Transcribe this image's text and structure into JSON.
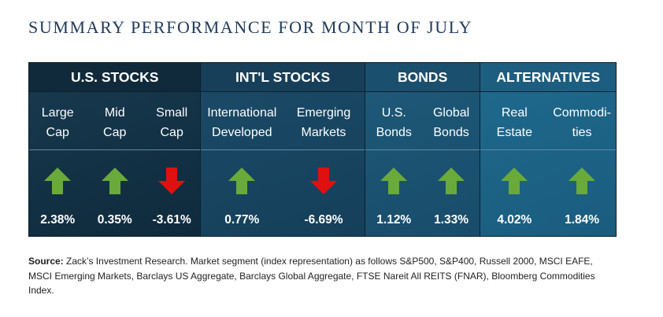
{
  "title": "SUMMARY PERFORMANCE FOR MONTH OF JULY",
  "groups": [
    {
      "header": "U.S. STOCKS",
      "columns": [
        {
          "line1": "Large",
          "line2": "Cap",
          "direction": "up",
          "value": "2.38%"
        },
        {
          "line1": "Mid",
          "line2": "Cap",
          "direction": "up",
          "value": "0.35%"
        },
        {
          "line1": "Small",
          "line2": "Cap",
          "direction": "down",
          "value": "-3.61%"
        }
      ]
    },
    {
      "header": "INT'L STOCKS",
      "columns": [
        {
          "line1": "International",
          "line2": "Developed",
          "direction": "up",
          "value": "0.77%"
        },
        {
          "line1": "Emerging",
          "line2": "Markets",
          "direction": "down",
          "value": "-6.69%"
        }
      ]
    },
    {
      "header": "BONDS",
      "columns": [
        {
          "line1": "U.S.",
          "line2": "Bonds",
          "direction": "up",
          "value": "1.12%"
        },
        {
          "line1": "Global",
          "line2": "Bonds",
          "direction": "up",
          "value": "1.33%"
        }
      ]
    },
    {
      "header": "ALTERNATIVES",
      "columns": [
        {
          "line1": "Real",
          "line2": "Estate",
          "direction": "up",
          "value": "4.02%"
        },
        {
          "line1": "Commodi-",
          "line2": "ties",
          "direction": "up",
          "value": "1.84%"
        }
      ]
    }
  ],
  "arrow_colors": {
    "up": "#6aaa3a",
    "down": "#e01010"
  },
  "source": {
    "label": "Source:",
    "text": " Zack’s Investment Research. Market segment (index representation) as follows S&P500, S&P400, Russell 2000, MSCI EAFE, MSCI Emerging Markets, Barclays US Aggregate, Barclays Global Aggregate, FTSE Nareit All REITS (FNAR), Bloomberg Commodities Index."
  }
}
